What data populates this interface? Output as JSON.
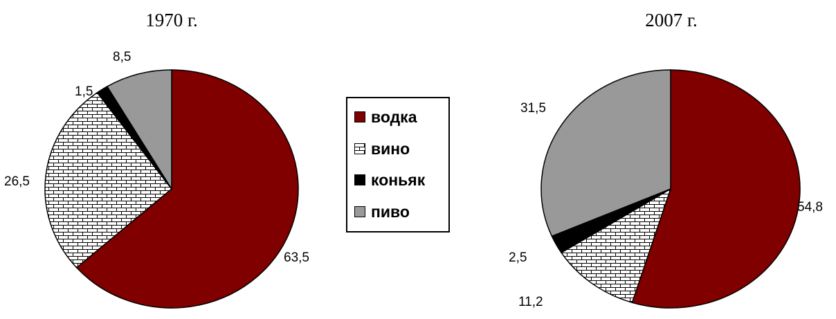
{
  "chart_data": [
    {
      "type": "pie",
      "title": "1970 г.",
      "categories": [
        "водка",
        "вино",
        "коньяк",
        "пиво"
      ],
      "values": [
        63.5,
        26.5,
        1.5,
        8.5
      ],
      "labels": [
        "63,5",
        "26,5",
        "1,5",
        "8,5"
      ]
    },
    {
      "type": "pie",
      "title": "2007 г.",
      "categories": [
        "водка",
        "вино",
        "коньяк",
        "пиво"
      ],
      "values": [
        54.8,
        11.2,
        2.5,
        31.5
      ],
      "labels": [
        "54,8",
        "11,2",
        "2,5",
        "31,5"
      ]
    }
  ],
  "legend": {
    "items": [
      {
        "label": "водка",
        "color": "#800000"
      },
      {
        "label": "вино",
        "pattern": "brick"
      },
      {
        "label": "коньяк",
        "color": "#000000"
      },
      {
        "label": "пиво",
        "color": "#999999"
      }
    ],
    "placement": "center"
  },
  "colors": {
    "vodka": "#800000",
    "wine_pattern": "brick",
    "cognac": "#000000",
    "beer": "#999999"
  }
}
